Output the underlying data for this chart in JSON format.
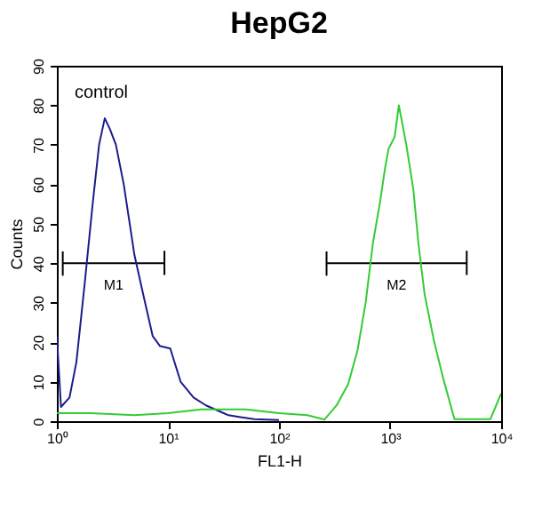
{
  "chart_data": {
    "type": "line",
    "title": "HepG2",
    "xlabel": "FL1-H",
    "ylabel": "Counts",
    "log": "x",
    "xlim": [
      1,
      10000
    ],
    "xticks": [
      {
        "value": 1,
        "label": "10⁰"
      },
      {
        "value": 10,
        "label": "10¹"
      },
      {
        "value": 100,
        "label": "10²"
      },
      {
        "value": 1000,
        "label": "10³"
      },
      {
        "value": 10000,
        "label": "10⁴"
      }
    ],
    "ylim": [
      0,
      90
    ],
    "yticks": [
      0,
      10,
      20,
      30,
      40,
      50,
      60,
      70,
      80,
      90
    ],
    "grid": false,
    "legend": false,
    "annotations": [
      {
        "text": "M1",
        "x": 3.24,
        "y": 40
      },
      {
        "text": "M2",
        "x": 1146,
        "y": 40
      }
    ],
    "series": [
      {
        "type": "line",
        "color": "#000000",
        "x": [
          1.13,
          1.13,
          1.13,
          9.3,
          9.3,
          9.3
        ],
        "values": [
          43,
          37,
          40,
          40,
          43,
          37
        ]
      },
      {
        "type": "line",
        "color": "#000000",
        "x": [
          268,
          268,
          268,
          4900,
          4900,
          4900
        ],
        "values": [
          43,
          37,
          40,
          40,
          43,
          37
        ]
      },
      {
        "name": "control",
        "color": "#1c1c8c",
        "x": [
          1,
          1.09,
          1.3,
          1.5,
          1.78,
          2.1,
          2.4,
          2.7,
          3.0,
          3.4,
          4.0,
          5.0,
          6.0,
          7.3,
          8.5,
          10.5,
          13,
          17,
          22,
          28,
          35,
          45,
          60,
          100
        ],
        "values": [
          21.5,
          3.6,
          6,
          15,
          34.8,
          55,
          70,
          76.7,
          74,
          70,
          60,
          42,
          32,
          21.5,
          19,
          18.4,
          10,
          6,
          4,
          2.7,
          1.5,
          1,
          0.5,
          0.3
        ]
      },
      {
        "color": "#33cc33",
        "x": [
          1,
          2,
          5,
          10,
          20,
          50,
          100,
          180,
          257,
          330,
          420,
          510,
          603,
          700,
          815,
          900,
          970,
          1100,
          1200,
          1400,
          1620,
          1800,
          2050,
          2500,
          3000,
          3800,
          5000,
          8000,
          10000
        ],
        "values": [
          2,
          2,
          1.5,
          2,
          3,
          3,
          2,
          1.5,
          0.4,
          4,
          9.4,
          18,
          30,
          45,
          55.7,
          64,
          69,
          72,
          80,
          70,
          58.7,
          45,
          32,
          20,
          11,
          0.5,
          0.5,
          0.5,
          7
        ]
      }
    ]
  }
}
